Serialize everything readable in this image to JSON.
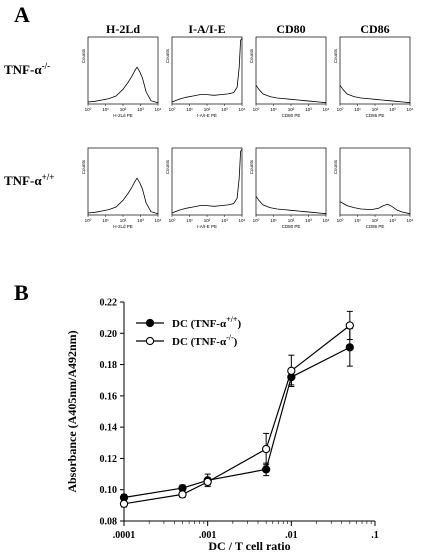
{
  "panels": {
    "a_label": "A",
    "b_label": "B"
  },
  "histograms": {
    "columns": [
      "H-2Ld",
      "I-A/I-E",
      "CD80",
      "CD86"
    ],
    "rows": [
      {
        "label": "TNF-α",
        "sup": "-/-"
      },
      {
        "label": "TNF-α",
        "sup": "+/+"
      }
    ],
    "xlabels": [
      "H-2Ld PE",
      "I-A/I-E PE",
      "CD80 PE",
      "CD86 PE"
    ],
    "ylabel": "Counts",
    "xticks": [
      "10⁰",
      "10¹",
      "10²",
      "10³",
      "10⁴"
    ],
    "colors": {
      "trace": "#000000"
    }
  },
  "chart_data": {
    "type": "line",
    "xscale": "log",
    "xlabel": "DC / T cell ratio",
    "ylabel": "Absorbance (A405nm/A492nm)",
    "xlim": [
      0.0001,
      0.1
    ],
    "ylim": [
      0.08,
      0.22
    ],
    "xtick_labels": [
      ".0001",
      ".001",
      ".01",
      ".1"
    ],
    "xtick_values": [
      0.0001,
      0.001,
      0.01,
      0.1
    ],
    "yticks": [
      0.08,
      0.1,
      0.12,
      0.14,
      0.16,
      0.18,
      0.2,
      0.22
    ],
    "ytick_labels": [
      "0.08",
      "0.10",
      "0.12",
      "0.14",
      "0.16",
      "0.18",
      "0.20",
      "0.22"
    ],
    "x": [
      0.0001,
      0.0005,
      0.001,
      0.005,
      0.01,
      0.05
    ],
    "legend_position": "top-left",
    "series": [
      {
        "name": "DC  (TNF-α",
        "name_sup": "+/+",
        "marker": "filled-circle",
        "values": [
          0.095,
          0.101,
          0.106,
          0.113,
          0.172,
          0.191
        ],
        "errors": [
          0.002,
          0.002,
          0.004,
          0.004,
          0.005,
          0.012
        ]
      },
      {
        "name": "DC  (TNF-α",
        "name_sup": "-/-",
        "marker": "open-circle",
        "values": [
          0.091,
          0.097,
          0.105,
          0.126,
          0.176,
          0.205
        ],
        "errors": [
          0.002,
          0.002,
          0.002,
          0.01,
          0.01,
          0.009
        ]
      }
    ]
  }
}
